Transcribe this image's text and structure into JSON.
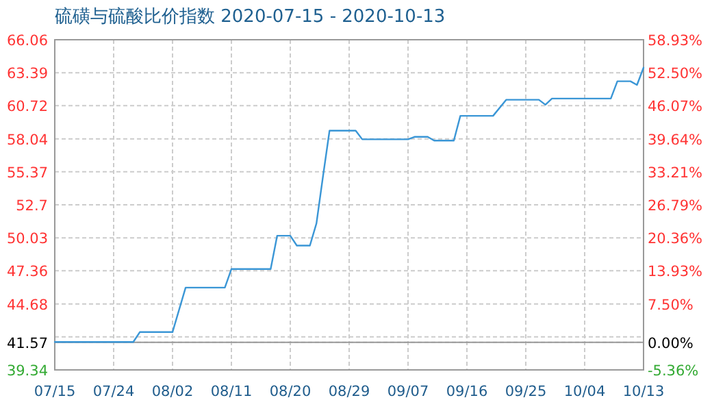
{
  "chart_data": {
    "type": "line",
    "title": "硫磺与硫酸比价指数 2020-07-15 - 2020-10-13",
    "x": [
      "2020-07-15",
      "2020-07-27",
      "2020-07-28",
      "2020-08-02",
      "2020-08-04",
      "2020-08-10",
      "2020-08-11",
      "2020-08-17",
      "2020-08-18",
      "2020-08-20",
      "2020-08-21",
      "2020-08-23",
      "2020-08-24",
      "2020-08-25",
      "2020-08-26",
      "2020-08-30",
      "2020-08-31",
      "2020-09-07",
      "2020-09-08",
      "2020-09-10",
      "2020-09-11",
      "2020-09-14",
      "2020-09-15",
      "2020-09-20",
      "2020-09-22",
      "2020-09-27",
      "2020-09-28",
      "2020-09-29",
      "2020-10-08",
      "2020-10-09",
      "2020-10-11",
      "2020-10-12",
      "2020-10-13"
    ],
    "series": [
      {
        "color": "#3a96d6",
        "values": [
          41.6,
          41.6,
          42.4,
          42.4,
          46.0,
          46.0,
          47.5,
          47.5,
          50.2,
          50.2,
          49.4,
          49.4,
          51.2,
          55.0,
          58.7,
          58.7,
          58.0,
          58.0,
          58.2,
          58.2,
          57.9,
          57.9,
          59.9,
          59.9,
          61.2,
          61.2,
          60.8,
          61.3,
          61.3,
          62.7,
          62.7,
          62.4,
          63.8
        ]
      }
    ],
    "xlim": [
      "2020-07-15",
      "2020-10-13"
    ],
    "xticks": [
      {
        "value": "2020-07-15",
        "label": "07/15"
      },
      {
        "value": "2020-07-24",
        "label": "07/24"
      },
      {
        "value": "2020-08-02",
        "label": "08/02"
      },
      {
        "value": "2020-08-11",
        "label": "08/11"
      },
      {
        "value": "2020-08-20",
        "label": "08/20"
      },
      {
        "value": "2020-08-29",
        "label": "08/29"
      },
      {
        "value": "2020-09-07",
        "label": "09/07"
      },
      {
        "value": "2020-09-16",
        "label": "09/16"
      },
      {
        "value": "2020-09-25",
        "label": "09/25"
      },
      {
        "value": "2020-10-04",
        "label": "10/04"
      },
      {
        "value": "2020-10-13",
        "label": "10/13"
      }
    ],
    "ylim": [
      39.34,
      66.06
    ],
    "yticks": [
      39.34,
      41.57,
      {
        "value": 42.01,
        "label": null
      },
      44.68,
      47.36,
      50.03,
      {
        "value": 52.7,
        "label": "52.7"
      },
      55.37,
      58.04,
      60.72,
      63.39,
      66.06
    ],
    "y2lim": [
      -5.36,
      58.93
    ],
    "y2ticks": [
      {
        "value": -5.36,
        "label": "-5.36%"
      },
      {
        "value": 0,
        "label": "0.00%"
      },
      {
        "value": 7.5,
        "label": "7.50%"
      },
      {
        "value": 13.93,
        "label": "13.93%"
      },
      {
        "value": 20.36,
        "label": "20.36%"
      },
      {
        "value": 26.79,
        "label": "26.79%"
      },
      {
        "value": 33.21,
        "label": "33.21%"
      },
      {
        "value": 39.64,
        "label": "39.64%"
      },
      {
        "value": 46.07,
        "label": "46.07%"
      },
      {
        "value": 52.5,
        "label": "52.50%"
      },
      {
        "value": 58.93,
        "label": "58.93%"
      }
    ],
    "ref_lines": [
      {
        "axis": "y",
        "value": 41.57,
        "color": "#999999"
      }
    ],
    "grid": true,
    "line_style": "solid"
  }
}
